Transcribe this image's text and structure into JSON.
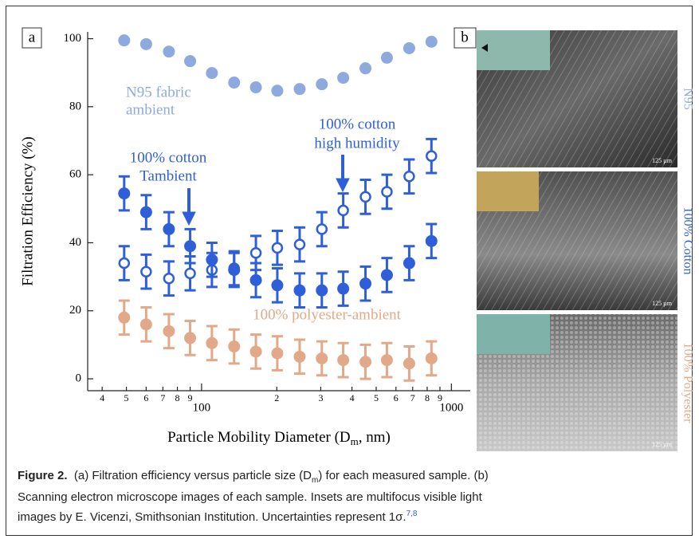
{
  "chart_data": {
    "type": "scatter",
    "panel_label": "a",
    "xscale": "log",
    "x_label_parts": [
      "Particle Mobility Diameter (D",
      "m",
      ", nm)"
    ],
    "y_label": "Filtration Efficiency (%)",
    "x": [
      49,
      60,
      74,
      90,
      110,
      135,
      165,
      201,
      247,
      303,
      369,
      453,
      552,
      678,
      832
    ],
    "xlim": [
      35,
      1190
    ],
    "xticks": [
      {
        "value": 40,
        "label": "4"
      },
      {
        "value": 50,
        "label": "5"
      },
      {
        "value": 60,
        "label": "6"
      },
      {
        "value": 70,
        "label": "7"
      },
      {
        "value": 80,
        "label": "8"
      },
      {
        "value": 90,
        "label": "9"
      },
      100,
      {
        "value": 200,
        "label": "2"
      },
      {
        "value": 300,
        "label": "3"
      },
      {
        "value": 400,
        "label": "4"
      },
      {
        "value": 500,
        "label": "5"
      },
      {
        "value": 600,
        "label": "6"
      },
      {
        "value": 700,
        "label": "7"
      },
      {
        "value": 800,
        "label": "8"
      },
      {
        "value": 900,
        "label": "9"
      },
      1000
    ],
    "ylim": [
      -3.5,
      102
    ],
    "yticks": [
      0,
      20,
      40,
      60,
      80,
      100
    ],
    "series": [
      {
        "label": [
          "100% polyester-ambient"
        ],
        "color": "#e2a988",
        "marker": "filled",
        "values": [
          18,
          16,
          14,
          12,
          10.5,
          9.5,
          8,
          7.5,
          6.5,
          6,
          5.5,
          5,
          5.5,
          4.5,
          6
        ],
        "errors": [
          5,
          5,
          5,
          5,
          5,
          5,
          5,
          5,
          5,
          5,
          5,
          5,
          5,
          5,
          5
        ]
      },
      {
        "label": [
          "100% cotton",
          "high humidity"
        ],
        "color": "#2f5fd8",
        "marker": "open",
        "values": [
          34,
          31.5,
          29.5,
          31,
          32,
          32.5,
          37,
          38.5,
          39.5,
          44,
          49.5,
          53.5,
          55,
          59.5,
          65.5
        ],
        "errors": [
          5,
          5,
          5,
          5,
          5,
          5,
          5,
          5,
          5,
          5,
          5,
          5,
          5,
          5,
          5
        ]
      },
      {
        "label": [
          "100% cotton",
          "Tambient"
        ],
        "color": "#2f5fd8",
        "marker": "filled",
        "values": [
          54.5,
          49,
          44,
          39,
          35,
          32,
          29,
          27.5,
          26,
          26,
          26.5,
          28,
          30.5,
          34,
          40.5
        ],
        "errors": [
          5,
          5,
          5,
          5,
          5,
          5,
          5,
          5,
          5,
          5,
          5,
          5,
          5,
          5,
          5
        ]
      },
      {
        "label": [
          "N95 fabric",
          "ambient"
        ],
        "color": "#8ea9de",
        "marker": "filled",
        "values": [
          99.5,
          98.4,
          96.2,
          93.4,
          89.9,
          87.1,
          85.7,
          84.7,
          85.2,
          86.6,
          88.5,
          91.3,
          94.4,
          97.2,
          99.1
        ]
      }
    ]
  },
  "images_panel": {
    "panel_label": "b",
    "images": [
      {
        "label": "N95",
        "color": "#8ea9de",
        "scale": "125 µm"
      },
      {
        "label": "100% Cotton",
        "color": "#2f5fd8",
        "scale": "125 µm"
      },
      {
        "label": "100% Polyester",
        "color": "#e2a988",
        "scale": "125 µm"
      }
    ]
  },
  "caption": {
    "label": "Figure 2.",
    "parts": [
      "(a) Filtration efficiency versus particle size (D",
      "m",
      ") for each measured sample. (b)",
      "Scanning electron microscope images of each sample. Insets are multifocus visible light",
      "images by E. Vicenzi, Smithsonian Institution. Uncertainties represent 1σ.",
      "7,8"
    ]
  }
}
